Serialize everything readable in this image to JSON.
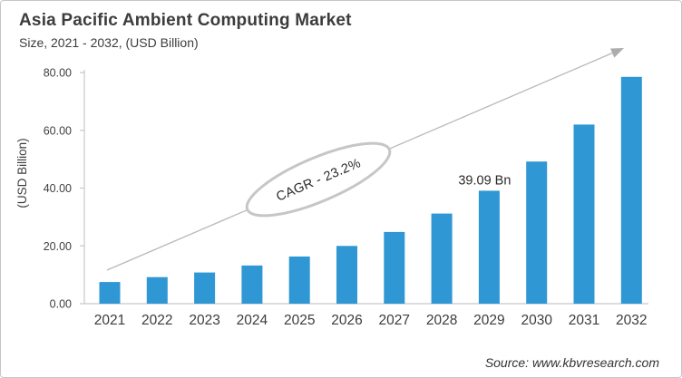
{
  "chart_data": {
    "type": "bar",
    "title": "Asia Pacific Ambient Computing Market",
    "subtitle": "Size, 2021 - 2032, (USD Billion)",
    "ylabel": "(USD Billion)",
    "categories": [
      "2021",
      "2022",
      "2023",
      "2024",
      "2025",
      "2026",
      "2027",
      "2028",
      "2029",
      "2030",
      "2031",
      "2032"
    ],
    "values": [
      7.5,
      9.2,
      10.8,
      13.2,
      16.3,
      20.0,
      24.8,
      31.2,
      39.09,
      49.2,
      62.0,
      78.5
    ],
    "ylim": [
      0,
      80
    ],
    "ytick_values": [
      0,
      20,
      40,
      60,
      80
    ],
    "ytick_labels": [
      "0.00",
      "20.00",
      "40.00",
      "60.00",
      "80.00"
    ],
    "grid": "off",
    "legend": "none",
    "annotations": {
      "cagr_label": "CAGR - 23.2%",
      "value_label": "39.09 Bn",
      "value_label_category": "2029",
      "value_label_index": 8,
      "trend_arrow": "upward"
    },
    "colors": {
      "bar": "#2F97D3",
      "axis": "#C8C8C8",
      "arrow": "#B8B8B8",
      "arrow_head": "#ACACAC",
      "ellipse_stroke": "#C6C6C6",
      "text_dark": "#3C3C3C",
      "tick_text": "#404040"
    },
    "source": "Source: www.kbvresearch.com"
  }
}
